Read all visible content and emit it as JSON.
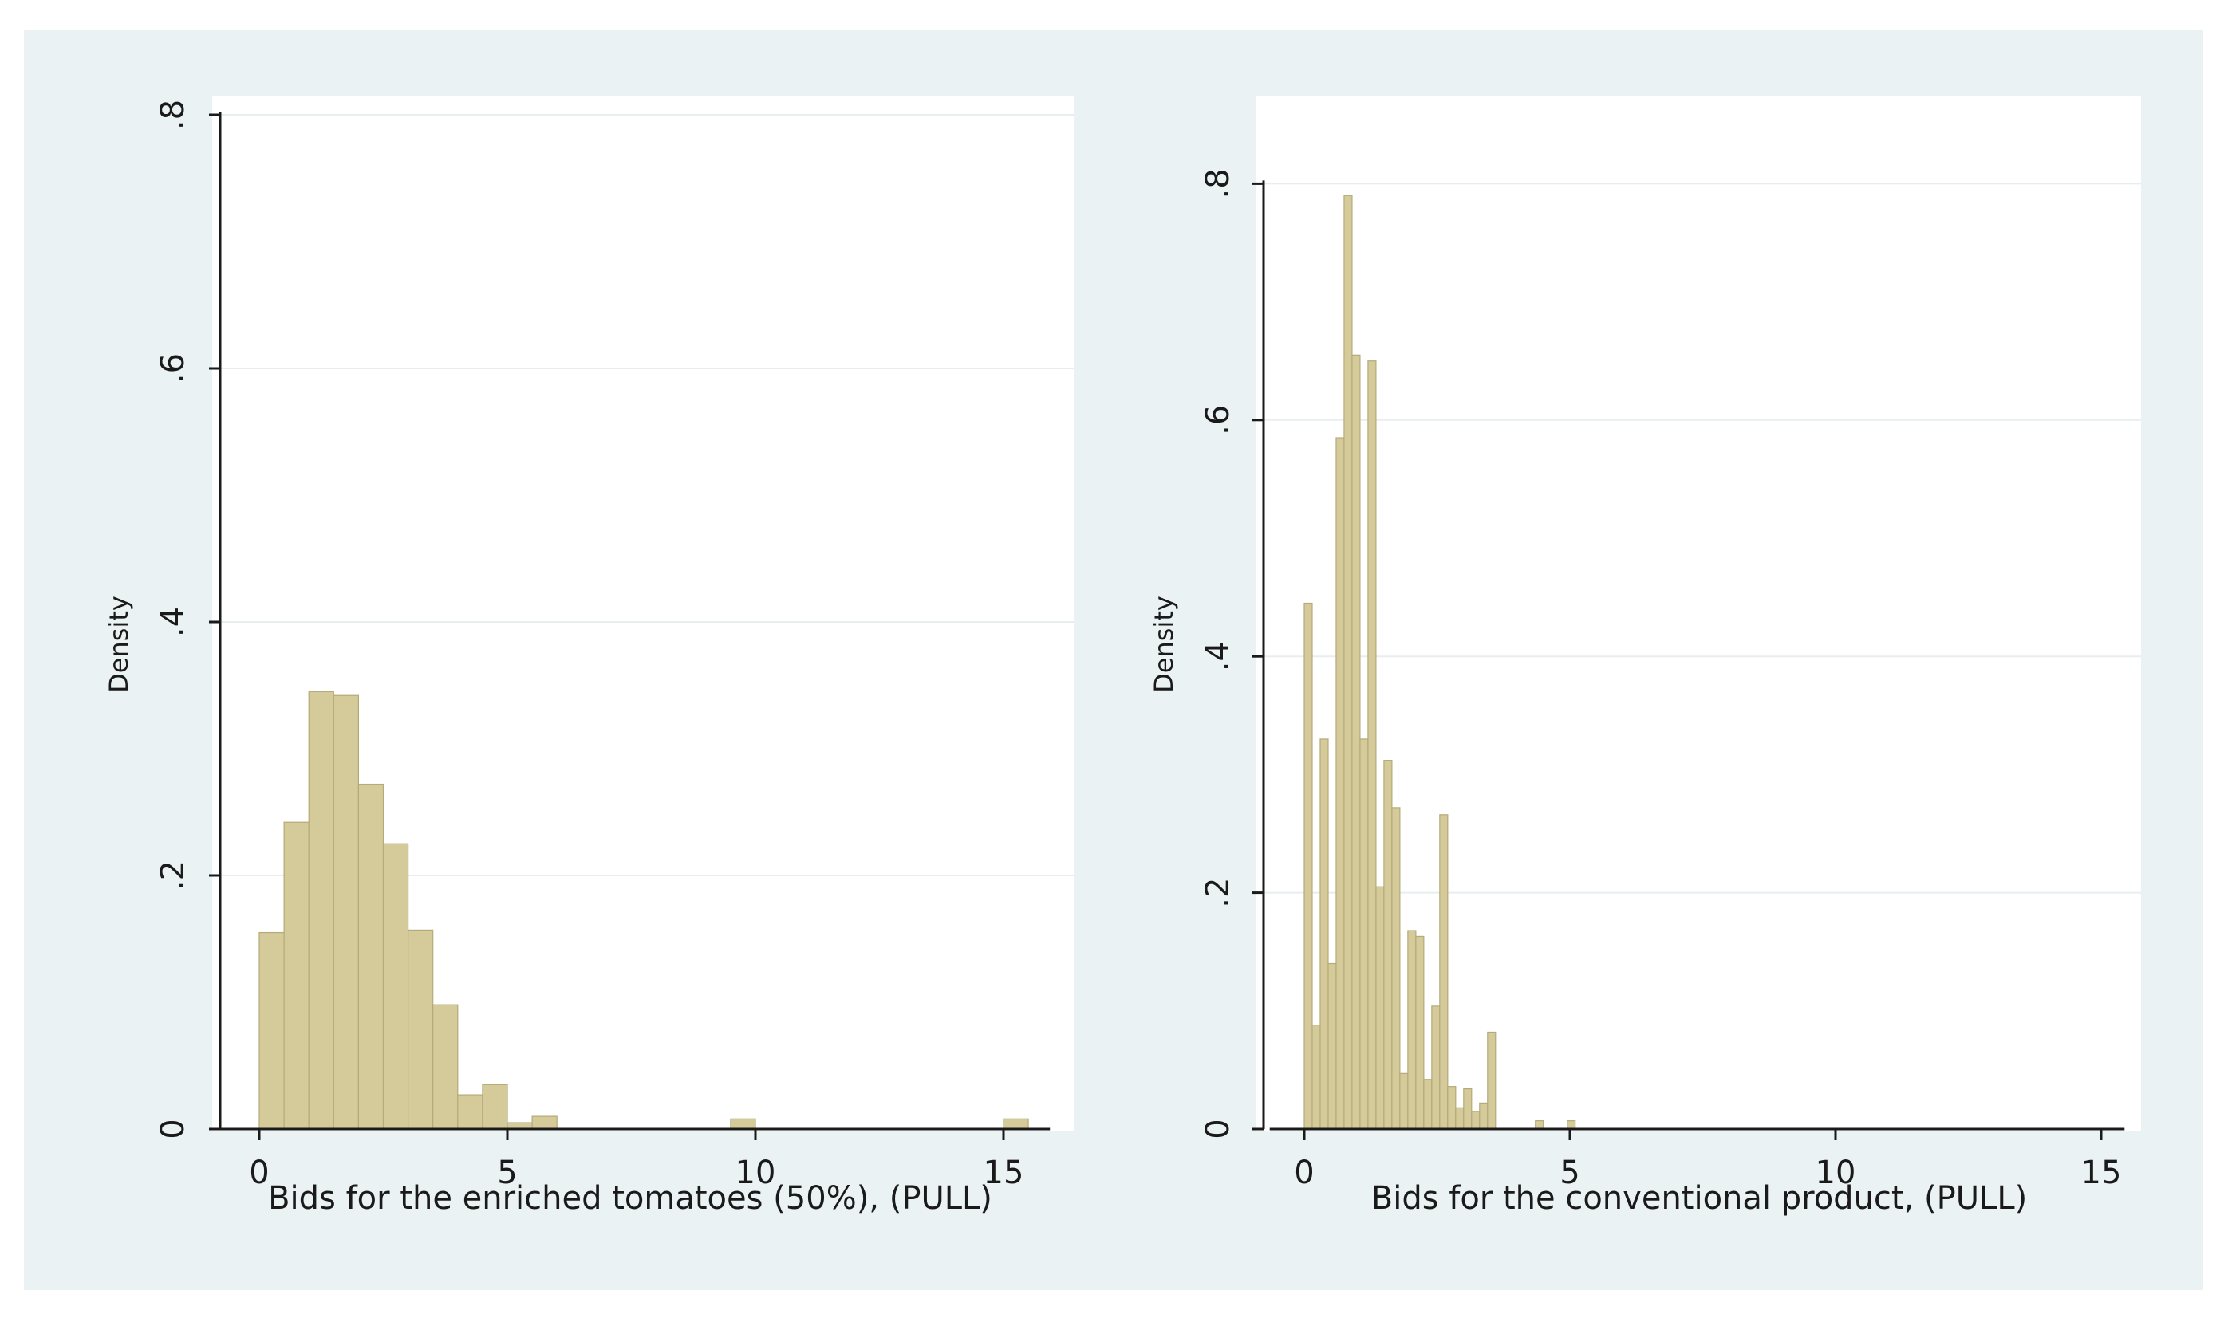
{
  "colors": {
    "page_bg": "#ffffff",
    "figure_bg": "#eaf2f3",
    "plot_bg": "#ffffff",
    "grid": "#e8eef0",
    "bar_fill": "#d5cb9a",
    "bar_stroke": "#b5aa78",
    "axis": "#1a1a1a"
  },
  "chart_data": [
    {
      "type": "bar",
      "histogram": true,
      "xlabel": "Bids for the enriched tomatoes (50%), (PULL)",
      "ylabel": "Density",
      "xlim": [
        -1,
        16
      ],
      "ylim": [
        0,
        0.8
      ],
      "xticks": [
        0,
        5,
        10,
        15
      ],
      "xtick_labels": [
        "0",
        "5",
        "10",
        "15"
      ],
      "yticks": [
        0,
        0.2,
        0.4,
        0.6,
        0.8
      ],
      "ytick_labels": [
        "0",
        ".2",
        ".4",
        ".6",
        ".8"
      ],
      "grid": true,
      "bins": [
        {
          "x0": 0.0,
          "x1": 0.5,
          "value": 0.155
        },
        {
          "x0": 0.5,
          "x1": 1.0,
          "value": 0.242
        },
        {
          "x0": 1.0,
          "x1": 1.5,
          "value": 0.345
        },
        {
          "x0": 1.5,
          "x1": 2.0,
          "value": 0.342
        },
        {
          "x0": 2.0,
          "x1": 2.5,
          "value": 0.272
        },
        {
          "x0": 2.5,
          "x1": 3.0,
          "value": 0.225
        },
        {
          "x0": 3.0,
          "x1": 3.5,
          "value": 0.157
        },
        {
          "x0": 3.5,
          "x1": 4.0,
          "value": 0.098
        },
        {
          "x0": 4.0,
          "x1": 4.5,
          "value": 0.027
        },
        {
          "x0": 4.5,
          "x1": 5.0,
          "value": 0.035
        },
        {
          "x0": 5.0,
          "x1": 5.5,
          "value": 0.005
        },
        {
          "x0": 5.5,
          "x1": 6.0,
          "value": 0.01
        },
        {
          "x0": 9.5,
          "x1": 10.0,
          "value": 0.008
        },
        {
          "x0": 15.0,
          "x1": 15.5,
          "value": 0.008
        }
      ]
    },
    {
      "type": "bar",
      "histogram": true,
      "xlabel": "Bids for the conventional product, (PULL)",
      "ylabel": "Density",
      "xlim": [
        -0.8,
        15.5
      ],
      "ylim": [
        0,
        0.8
      ],
      "xticks": [
        0,
        5,
        10,
        15
      ],
      "xtick_labels": [
        "0",
        "5",
        "10",
        "15"
      ],
      "yticks": [
        0,
        0.2,
        0.4,
        0.6,
        0.8
      ],
      "ytick_labels": [
        "0",
        ".2",
        ".4",
        ".6",
        ".8"
      ],
      "grid": true,
      "bins": [
        {
          "x0": 0.0,
          "x1": 0.15,
          "value": 0.445
        },
        {
          "x0": 0.15,
          "x1": 0.3,
          "value": 0.088
        },
        {
          "x0": 0.3,
          "x1": 0.45,
          "value": 0.33
        },
        {
          "x0": 0.45,
          "x1": 0.6,
          "value": 0.14
        },
        {
          "x0": 0.6,
          "x1": 0.75,
          "value": 0.585
        },
        {
          "x0": 0.75,
          "x1": 0.9,
          "value": 0.79
        },
        {
          "x0": 0.9,
          "x1": 1.05,
          "value": 0.655
        },
        {
          "x0": 1.05,
          "x1": 1.2,
          "value": 0.33
        },
        {
          "x0": 1.2,
          "x1": 1.35,
          "value": 0.65
        },
        {
          "x0": 1.35,
          "x1": 1.5,
          "value": 0.205
        },
        {
          "x0": 1.5,
          "x1": 1.65,
          "value": 0.312
        },
        {
          "x0": 1.65,
          "x1": 1.8,
          "value": 0.272
        },
        {
          "x0": 1.8,
          "x1": 1.95,
          "value": 0.047
        },
        {
          "x0": 1.95,
          "x1": 2.1,
          "value": 0.168
        },
        {
          "x0": 2.1,
          "x1": 2.25,
          "value": 0.163
        },
        {
          "x0": 2.25,
          "x1": 2.4,
          "value": 0.042
        },
        {
          "x0": 2.4,
          "x1": 2.55,
          "value": 0.104
        },
        {
          "x0": 2.55,
          "x1": 2.7,
          "value": 0.266
        },
        {
          "x0": 2.7,
          "x1": 2.85,
          "value": 0.036
        },
        {
          "x0": 2.85,
          "x1": 3.0,
          "value": 0.018
        },
        {
          "x0": 3.0,
          "x1": 3.15,
          "value": 0.034
        },
        {
          "x0": 3.15,
          "x1": 3.3,
          "value": 0.015
        },
        {
          "x0": 3.3,
          "x1": 3.45,
          "value": 0.022
        },
        {
          "x0": 3.45,
          "x1": 3.6,
          "value": 0.082
        },
        {
          "x0": 4.35,
          "x1": 4.5,
          "value": 0.007
        },
        {
          "x0": 4.95,
          "x1": 5.1,
          "value": 0.007
        }
      ]
    }
  ]
}
